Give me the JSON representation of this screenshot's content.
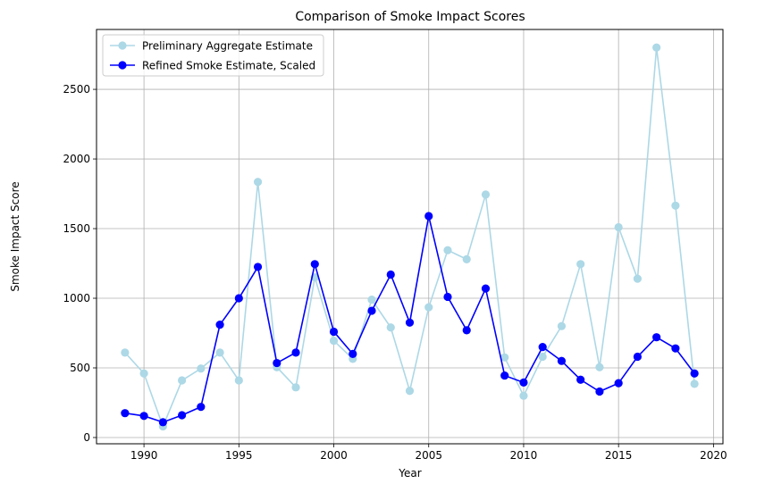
{
  "chart_data": {
    "type": "line",
    "title": "Comparison of Smoke Impact Scores",
    "xlabel": "Year",
    "ylabel": "Smoke Impact Score",
    "xlim": [
      1987.5,
      2020.5
    ],
    "ylim": [
      -45,
      2930
    ],
    "xticks": [
      1990,
      1995,
      2000,
      2005,
      2010,
      2015,
      2020
    ],
    "yticks": [
      0,
      500,
      1000,
      1500,
      2000,
      2500
    ],
    "grid": true,
    "legend_position": "top-left",
    "x": [
      1989,
      1990,
      1991,
      1992,
      1993,
      1994,
      1995,
      1996,
      1997,
      1998,
      1999,
      2000,
      2001,
      2002,
      2003,
      2004,
      2005,
      2006,
      2007,
      2008,
      2009,
      2010,
      2011,
      2012,
      2013,
      2014,
      2015,
      2016,
      2017,
      2018,
      2019
    ],
    "series": [
      {
        "name": "Preliminary Aggregate Estimate",
        "color": "#add8e6",
        "values": [
          610,
          460,
          80,
          410,
          495,
          610,
          410,
          1835,
          505,
          360,
          1150,
          695,
          565,
          990,
          790,
          335,
          935,
          1345,
          1280,
          1745,
          575,
          300,
          580,
          800,
          1245,
          505,
          1510,
          1140,
          2800,
          1665,
          385
        ]
      },
      {
        "name": "Refined Smoke Estimate, Scaled",
        "color": "#0000ff",
        "values": [
          175,
          155,
          110,
          160,
          220,
          810,
          1000,
          1225,
          535,
          610,
          1245,
          760,
          600,
          910,
          1170,
          825,
          1590,
          1010,
          770,
          1070,
          445,
          395,
          650,
          550,
          415,
          330,
          390,
          580,
          720,
          640,
          460
        ]
      }
    ]
  }
}
